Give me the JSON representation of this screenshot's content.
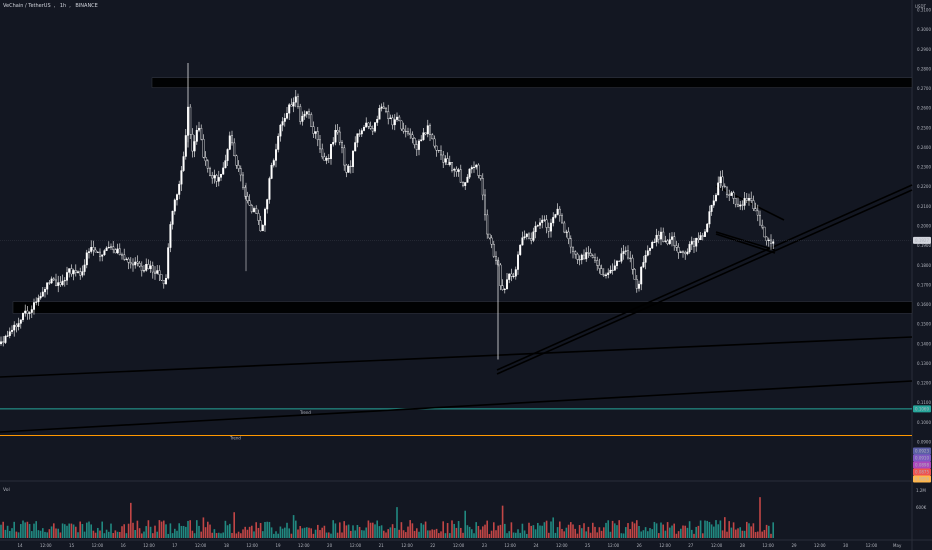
{
  "header": {
    "symbol": "VeChain / TetherUS",
    "interval": "1h",
    "exchange": "BINANCE"
  },
  "price_axis": {
    "currency": "USDT"
  },
  "volume_pane": {
    "label": "Vol"
  },
  "annotations": {
    "trend_label": "Trend"
  },
  "badges": {
    "last_price": "0.1927",
    "trend_line": "0.1069",
    "stack": [
      "0.0923",
      "0.0910",
      "0.0898",
      "0.0875",
      "0.0856"
    ]
  },
  "colors": {
    "bull": "#26a69a",
    "bear": "#ef5350",
    "background": "#131722",
    "hline_teal": "#26a69a",
    "hline_orange": "#ff9800"
  },
  "chart_data": {
    "type": "candlestick",
    "title": "VeChain / TetherUS, 1h, BINANCE",
    "y_axis": {
      "ticks": [
        "0.3100",
        "0.3000",
        "0.2900",
        "0.2800",
        "0.2700",
        "0.2600",
        "0.2500",
        "0.2400",
        "0.2300",
        "0.2200",
        "0.2100",
        "0.2000",
        "0.1900",
        "0.1800",
        "0.1700",
        "0.1600",
        "0.1500",
        "0.1400",
        "0.1300",
        "0.1200",
        "0.1100",
        "0.1000",
        "0.0900"
      ],
      "range": [
        0.09,
        0.31
      ]
    },
    "x_axis": {
      "ticks": [
        "14",
        "12:00",
        "15",
        "12:00",
        "16",
        "12:00",
        "17",
        "12:00",
        "18",
        "12:00",
        "19",
        "12:00",
        "20",
        "12:00",
        "21",
        "12:00",
        "22",
        "12:00",
        "23",
        "12:00",
        "24",
        "12:00",
        "25",
        "12:00",
        "26",
        "12:00",
        "27",
        "12:00",
        "28",
        "12:00",
        "29",
        "12:00",
        "30",
        "12:00",
        "May"
      ]
    },
    "zones": [
      {
        "name": "resistance",
        "from": 0.2705,
        "to": 0.2755
      },
      {
        "name": "support",
        "from": 0.1555,
        "to": 0.1615
      }
    ],
    "horizontal_lines": [
      {
        "label": "Trend",
        "price": 0.1069,
        "color": "#26a69a"
      },
      {
        "label": "",
        "price": 0.0933,
        "color": "#ff9800"
      }
    ],
    "path": [
      [
        0,
        0.14
      ],
      [
        10,
        0.145
      ],
      [
        20,
        0.153
      ],
      [
        30,
        0.158
      ],
      [
        40,
        0.163
      ],
      [
        50,
        0.172
      ],
      [
        60,
        0.17
      ],
      [
        70,
        0.177
      ],
      [
        80,
        0.175
      ],
      [
        90,
        0.19
      ],
      [
        100,
        0.186
      ],
      [
        110,
        0.188
      ],
      [
        120,
        0.186
      ],
      [
        130,
        0.182
      ],
      [
        140,
        0.178
      ],
      [
        150,
        0.18
      ],
      [
        160,
        0.174
      ],
      [
        165,
        0.168
      ],
      [
        170,
        0.2
      ],
      [
        175,
        0.214
      ],
      [
        180,
        0.222
      ],
      [
        185,
        0.24
      ],
      [
        188,
        0.259
      ],
      [
        192,
        0.238
      ],
      [
        198,
        0.252
      ],
      [
        205,
        0.232
      ],
      [
        212,
        0.226
      ],
      [
        218,
        0.222
      ],
      [
        224,
        0.23
      ],
      [
        230,
        0.245
      ],
      [
        236,
        0.232
      ],
      [
        242,
        0.222
      ],
      [
        248,
        0.21
      ],
      [
        254,
        0.208
      ],
      [
        258,
        0.202
      ],
      [
        262,
        0.198
      ],
      [
        266,
        0.21
      ],
      [
        270,
        0.228
      ],
      [
        275,
        0.235
      ],
      [
        280,
        0.25
      ],
      [
        286,
        0.256
      ],
      [
        291,
        0.262
      ],
      [
        296,
        0.265
      ],
      [
        300,
        0.255
      ],
      [
        306,
        0.26
      ],
      [
        312,
        0.25
      ],
      [
        318,
        0.245
      ],
      [
        322,
        0.236
      ],
      [
        326,
        0.232
      ],
      [
        330,
        0.238
      ],
      [
        336,
        0.248
      ],
      [
        342,
        0.24
      ],
      [
        346,
        0.226
      ],
      [
        350,
        0.23
      ],
      [
        356,
        0.246
      ],
      [
        362,
        0.25
      ],
      [
        368,
        0.252
      ],
      [
        372,
        0.248
      ],
      [
        377,
        0.253
      ],
      [
        381,
        0.262
      ],
      [
        385,
        0.258
      ],
      [
        392,
        0.252
      ],
      [
        398,
        0.255
      ],
      [
        404,
        0.248
      ],
      [
        410,
        0.245
      ],
      [
        416,
        0.24
      ],
      [
        422,
        0.245
      ],
      [
        428,
        0.25
      ],
      [
        434,
        0.24
      ],
      [
        440,
        0.236
      ],
      [
        446,
        0.232
      ],
      [
        452,
        0.23
      ],
      [
        458,
        0.228
      ],
      [
        462,
        0.22
      ],
      [
        466,
        0.225
      ],
      [
        472,
        0.232
      ],
      [
        478,
        0.228
      ],
      [
        482,
        0.222
      ],
      [
        486,
        0.2
      ],
      [
        490,
        0.192
      ],
      [
        494,
        0.186
      ],
      [
        498,
        0.18
      ],
      [
        502,
        0.165
      ],
      [
        506,
        0.172
      ],
      [
        510,
        0.178
      ],
      [
        514,
        0.172
      ],
      [
        518,
        0.186
      ],
      [
        524,
        0.196
      ],
      [
        530,
        0.192
      ],
      [
        536,
        0.2
      ],
      [
        542,
        0.205
      ],
      [
        548,
        0.198
      ],
      [
        552,
        0.202
      ],
      [
        558,
        0.21
      ],
      [
        562,
        0.202
      ],
      [
        566,
        0.196
      ],
      [
        570,
        0.19
      ],
      [
        576,
        0.185
      ],
      [
        582,
        0.184
      ],
      [
        588,
        0.186
      ],
      [
        594,
        0.182
      ],
      [
        600,
        0.178
      ],
      [
        606,
        0.174
      ],
      [
        612,
        0.178
      ],
      [
        618,
        0.183
      ],
      [
        624,
        0.186
      ],
      [
        630,
        0.184
      ],
      [
        634,
        0.175
      ],
      [
        638,
        0.166
      ],
      [
        642,
        0.18
      ],
      [
        648,
        0.186
      ],
      [
        654,
        0.192
      ],
      [
        660,
        0.196
      ],
      [
        666,
        0.192
      ],
      [
        672,
        0.194
      ],
      [
        678,
        0.188
      ],
      [
        684,
        0.186
      ],
      [
        690,
        0.19
      ],
      [
        696,
        0.192
      ],
      [
        702,
        0.195
      ],
      [
        706,
        0.2
      ],
      [
        712,
        0.21
      ],
      [
        716,
        0.215
      ],
      [
        720,
        0.225
      ],
      [
        726,
        0.218
      ],
      [
        732,
        0.216
      ],
      [
        738,
        0.21
      ],
      [
        744,
        0.212
      ],
      [
        750,
        0.214
      ],
      [
        756,
        0.208
      ],
      [
        762,
        0.198
      ],
      [
        766,
        0.194
      ],
      [
        770,
        0.19
      ],
      [
        774,
        0.193
      ]
    ],
    "volume": {
      "max_label": "1.2M",
      "mid_label": "600K"
    }
  }
}
